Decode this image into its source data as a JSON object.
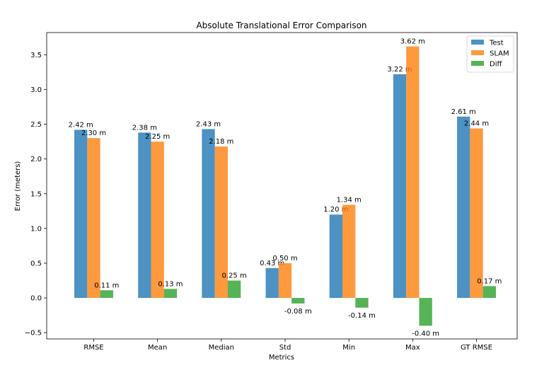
{
  "chart_data": {
    "type": "bar",
    "title": "Absolute Translational Error Comparison",
    "xlabel": "Metrics",
    "ylabel": "Error (meters)",
    "categories": [
      "RMSE",
      "Mean",
      "Median",
      "Std",
      "Min",
      "Max",
      "GT RMSE"
    ],
    "series": [
      {
        "name": "Test",
        "color": "#1f77b4",
        "values": [
          2.42,
          2.38,
          2.43,
          0.43,
          1.2,
          3.22,
          2.61
        ],
        "labels": [
          "2.42 m",
          "2.38 m",
          "2.43 m",
          "0.43 m",
          "1.20 m",
          "3.22 m",
          "2.61 m"
        ]
      },
      {
        "name": "SLAM",
        "color": "#ff7f0e",
        "values": [
          2.3,
          2.25,
          2.18,
          0.5,
          1.34,
          3.62,
          2.44
        ],
        "labels": [
          "2.30 m",
          "2.25 m",
          "2.18 m",
          "0.50 m",
          "1.34 m",
          "3.62 m",
          "2.44 m"
        ]
      },
      {
        "name": "Diff",
        "color": "#2ca02c",
        "values": [
          0.11,
          0.13,
          0.25,
          -0.08,
          -0.14,
          -0.4,
          0.17
        ],
        "labels": [
          "0.11 m",
          "0.13 m",
          "0.25 m",
          "-0.08 m",
          "-0.14 m",
          "-0.40 m",
          "0.17 m"
        ]
      }
    ],
    "ylim": [
      -0.59,
      3.82
    ],
    "yticks": [
      -0.5,
      0.0,
      0.5,
      1.0,
      1.5,
      2.0,
      2.5,
      3.0,
      3.5
    ],
    "ytick_labels": [
      "−0.5",
      "0.0",
      "0.5",
      "1.0",
      "1.5",
      "2.0",
      "2.5",
      "3.0",
      "3.5"
    ],
    "bar_alpha": 0.8,
    "grid": false,
    "legend_position": "top-right"
  }
}
